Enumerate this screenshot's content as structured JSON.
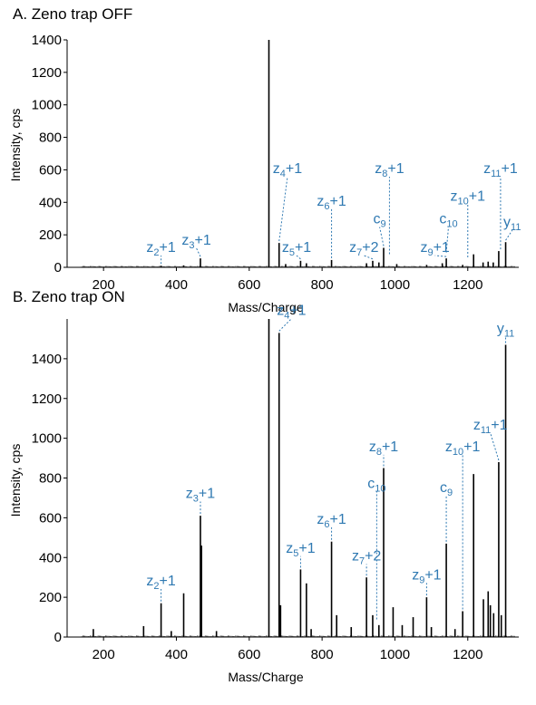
{
  "colors": {
    "annotation": "#2f79b2",
    "peaks": "#000000",
    "axis": "#000000"
  },
  "chart_data": [
    {
      "panel_title": "A. Zeno trap OFF",
      "type": "bar",
      "xlabel": "Mass/Charge",
      "ylabel": "Intensity, cps",
      "xlim": [
        100,
        1340
      ],
      "ylim": [
        0,
        1400
      ],
      "xticks": [
        200,
        400,
        600,
        800,
        1000,
        1200
      ],
      "yticks": [
        0,
        200,
        400,
        600,
        800,
        1000,
        1200,
        1400
      ],
      "grid": false,
      "peaks": [
        {
          "x": 358,
          "y": 10
        },
        {
          "x": 420,
          "y": 12
        },
        {
          "x": 466,
          "y": 55
        },
        {
          "x": 654,
          "y": 1400
        },
        {
          "x": 682,
          "y": 150
        },
        {
          "x": 700,
          "y": 20
        },
        {
          "x": 741,
          "y": 40
        },
        {
          "x": 757,
          "y": 25
        },
        {
          "x": 826,
          "y": 45
        },
        {
          "x": 922,
          "y": 25
        },
        {
          "x": 939,
          "y": 40
        },
        {
          "x": 956,
          "y": 30
        },
        {
          "x": 969,
          "y": 120
        },
        {
          "x": 1005,
          "y": 20
        },
        {
          "x": 1087,
          "y": 15
        },
        {
          "x": 1130,
          "y": 25
        },
        {
          "x": 1141,
          "y": 55
        },
        {
          "x": 1186,
          "y": 15
        },
        {
          "x": 1216,
          "y": 80
        },
        {
          "x": 1242,
          "y": 30
        },
        {
          "x": 1256,
          "y": 35
        },
        {
          "x": 1270,
          "y": 30
        },
        {
          "x": 1285,
          "y": 100
        },
        {
          "x": 1304,
          "y": 155
        }
      ],
      "annotations": [
        {
          "label": "z",
          "sub": "2",
          "suffix": "+1",
          "x": 358,
          "y": 10,
          "lx": 358,
          "ly": 95
        },
        {
          "label": "z",
          "sub": "3",
          "suffix": "+1",
          "x": 466,
          "y": 55,
          "lx": 455,
          "ly": 140
        },
        {
          "label": "z",
          "sub": "4",
          "suffix": "+1",
          "x": 682,
          "y": 150,
          "lx": 705,
          "ly": 580
        },
        {
          "label": "z",
          "sub": "5",
          "suffix": "+1",
          "x": 741,
          "y": 40,
          "lx": 730,
          "ly": 95
        },
        {
          "label": "z",
          "sub": "6",
          "suffix": "+1",
          "x": 826,
          "y": 45,
          "lx": 826,
          "ly": 380
        },
        {
          "label": "z",
          "sub": "7",
          "suffix": "+2",
          "x": 939,
          "y": 40,
          "lx": 915,
          "ly": 95
        },
        {
          "label": "c",
          "sub": "9",
          "suffix": "",
          "x": 969,
          "y": 120,
          "lx": 958,
          "ly": 270
        },
        {
          "label": "z",
          "sub": "8",
          "suffix": "+1",
          "x": 985,
          "y": 70,
          "lx": 985,
          "ly": 580
        },
        {
          "label": "z",
          "sub": "9",
          "suffix": "+1",
          "x": 1141,
          "y": 55,
          "lx": 1110,
          "ly": 95
        },
        {
          "label": "c",
          "sub": "10",
          "suffix": "",
          "x": 1141,
          "y": 80,
          "lx": 1147,
          "ly": 270
        },
        {
          "label": "z",
          "sub": "10",
          "suffix": "+1",
          "x": 1200,
          "y": 50,
          "lx": 1200,
          "ly": 410
        },
        {
          "label": "z",
          "sub": "11",
          "suffix": "+1",
          "x": 1290,
          "y": 100,
          "lx": 1290,
          "ly": 580
        },
        {
          "label": "y",
          "sub": "11",
          "suffix": "",
          "x": 1304,
          "y": 155,
          "lx": 1322,
          "ly": 250
        }
      ]
    },
    {
      "panel_title": "B. Zeno trap ON",
      "type": "bar",
      "xlabel": "Mass/Charge",
      "ylabel": "Intensity, cps",
      "xlim": [
        100,
        1340
      ],
      "ylim": [
        0,
        1600
      ],
      "xticks": [
        200,
        400,
        600,
        800,
        1000,
        1200
      ],
      "yticks": [
        0,
        200,
        400,
        600,
        800,
        1000,
        1200,
        1400
      ],
      "grid": false,
      "peaks": [
        {
          "x": 172,
          "y": 40
        },
        {
          "x": 310,
          "y": 55
        },
        {
          "x": 358,
          "y": 170
        },
        {
          "x": 386,
          "y": 30
        },
        {
          "x": 420,
          "y": 220
        },
        {
          "x": 466,
          "y": 610
        },
        {
          "x": 469,
          "y": 460
        },
        {
          "x": 510,
          "y": 30
        },
        {
          "x": 654,
          "y": 1600
        },
        {
          "x": 682,
          "y": 1530
        },
        {
          "x": 686,
          "y": 160
        },
        {
          "x": 741,
          "y": 340
        },
        {
          "x": 757,
          "y": 270
        },
        {
          "x": 770,
          "y": 40
        },
        {
          "x": 826,
          "y": 480
        },
        {
          "x": 840,
          "y": 110
        },
        {
          "x": 880,
          "y": 50
        },
        {
          "x": 922,
          "y": 300
        },
        {
          "x": 939,
          "y": 110
        },
        {
          "x": 956,
          "y": 60
        },
        {
          "x": 969,
          "y": 850
        },
        {
          "x": 995,
          "y": 150
        },
        {
          "x": 1020,
          "y": 60
        },
        {
          "x": 1050,
          "y": 100
        },
        {
          "x": 1087,
          "y": 200
        },
        {
          "x": 1100,
          "y": 50
        },
        {
          "x": 1141,
          "y": 470
        },
        {
          "x": 1165,
          "y": 40
        },
        {
          "x": 1186,
          "y": 130
        },
        {
          "x": 1216,
          "y": 820
        },
        {
          "x": 1243,
          "y": 190
        },
        {
          "x": 1256,
          "y": 230
        },
        {
          "x": 1262,
          "y": 160
        },
        {
          "x": 1271,
          "y": 120
        },
        {
          "x": 1285,
          "y": 880
        },
        {
          "x": 1292,
          "y": 110
        },
        {
          "x": 1304,
          "y": 1470
        }
      ],
      "annotations": [
        {
          "label": "z",
          "sub": "2",
          "suffix": "+1",
          "x": 358,
          "y": 170,
          "lx": 358,
          "ly": 260
        },
        {
          "label": "z",
          "sub": "3",
          "suffix": "+1",
          "x": 466,
          "y": 610,
          "lx": 466,
          "ly": 700
        },
        {
          "label": "z",
          "sub": "4",
          "suffix": "+1",
          "x": 682,
          "y": 1530,
          "lx": 716,
          "ly": 1620
        },
        {
          "label": "z",
          "sub": "5",
          "suffix": "+1",
          "x": 741,
          "y": 340,
          "lx": 741,
          "ly": 425
        },
        {
          "label": "z",
          "sub": "6",
          "suffix": "+1",
          "x": 826,
          "y": 480,
          "lx": 826,
          "ly": 570
        },
        {
          "label": "z",
          "sub": "7",
          "suffix": "+2",
          "x": 922,
          "y": 300,
          "lx": 922,
          "ly": 385
        },
        {
          "label": "c",
          "sub": "10",
          "suffix": "",
          "x": 950,
          "y": 80,
          "lx": 950,
          "ly": 750
        },
        {
          "label": "z",
          "sub": "8",
          "suffix": "+1",
          "x": 969,
          "y": 850,
          "lx": 969,
          "ly": 935
        },
        {
          "label": "z",
          "sub": "9",
          "suffix": "+1",
          "x": 1087,
          "y": 200,
          "lx": 1087,
          "ly": 290
        },
        {
          "label": "c",
          "sub": "",
          "suffix": "9",
          "x": 1141,
          "y": 470,
          "lx": 1141,
          "ly": 730
        },
        {
          "label": "z",
          "sub": "10",
          "suffix": "+1",
          "x": 1186,
          "y": 130,
          "lx": 1186,
          "ly": 935
        },
        {
          "label": "z",
          "sub": "11",
          "suffix": "+1",
          "x": 1285,
          "y": 880,
          "lx": 1262,
          "ly": 1045
        },
        {
          "label": "y",
          "sub": "11",
          "suffix": "",
          "x": 1304,
          "y": 1470,
          "lx": 1304,
          "ly": 1530
        }
      ]
    }
  ]
}
